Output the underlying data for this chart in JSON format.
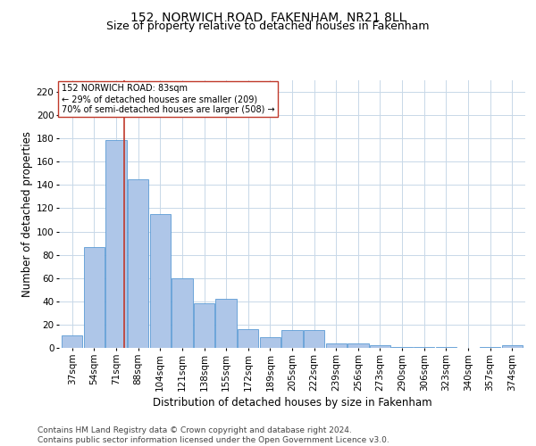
{
  "title": "152, NORWICH ROAD, FAKENHAM, NR21 8LL",
  "subtitle": "Size of property relative to detached houses in Fakenham",
  "xlabel": "Distribution of detached houses by size in Fakenham",
  "ylabel": "Number of detached properties",
  "categories": [
    "37sqm",
    "54sqm",
    "71sqm",
    "88sqm",
    "104sqm",
    "121sqm",
    "138sqm",
    "155sqm",
    "172sqm",
    "189sqm",
    "205sqm",
    "222sqm",
    "239sqm",
    "256sqm",
    "273sqm",
    "290sqm",
    "306sqm",
    "323sqm",
    "340sqm",
    "357sqm",
    "374sqm"
  ],
  "values": [
    11,
    87,
    179,
    145,
    115,
    60,
    38,
    42,
    16,
    9,
    15,
    15,
    4,
    4,
    2,
    1,
    1,
    1,
    0,
    1,
    2
  ],
  "bar_color": "#aec6e8",
  "bar_edge_color": "#5b9bd5",
  "vline_x_index": 2.35,
  "vline_color": "#c0392b",
  "annotation_text": "152 NORWICH ROAD: 83sqm\n← 29% of detached houses are smaller (209)\n70% of semi-detached houses are larger (508) →",
  "annotation_box_color": "#ffffff",
  "annotation_box_edge_color": "#c0392b",
  "ylim": [
    0,
    230
  ],
  "yticks": [
    0,
    20,
    40,
    60,
    80,
    100,
    120,
    140,
    160,
    180,
    200,
    220
  ],
  "grid_color": "#c8d8e8",
  "background_color": "#ffffff",
  "footer_line1": "Contains HM Land Registry data © Crown copyright and database right 2024.",
  "footer_line2": "Contains public sector information licensed under the Open Government Licence v3.0.",
  "title_fontsize": 10,
  "subtitle_fontsize": 9,
  "tick_fontsize": 7.5,
  "ylabel_fontsize": 8.5,
  "xlabel_fontsize": 8.5,
  "footer_fontsize": 6.5
}
